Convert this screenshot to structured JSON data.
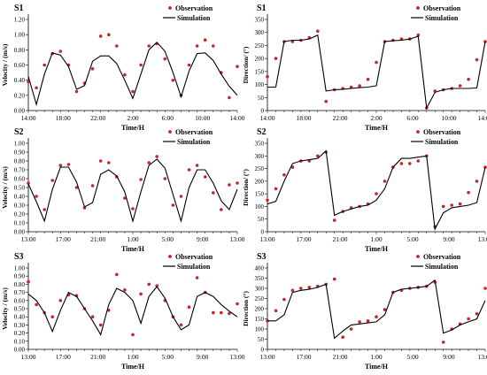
{
  "chart_data": [
    {
      "type": "line",
      "panel": "S1",
      "xlabel": "Time/H",
      "ylabel": "Velocity / (m/s)",
      "x_ticks": [
        "14:00",
        "18:00",
        "22:00",
        "2:00",
        "6:00",
        "10:00",
        "14:00"
      ],
      "ylim": [
        0,
        1.2
      ],
      "y_ticks": [
        "0.00",
        "0.20",
        "0.40",
        "0.60",
        "0.80",
        "1.00",
        "1.20"
      ],
      "legend": [
        "Observation",
        "Simulation"
      ],
      "legend_position": "top-right",
      "series": [
        {
          "name": "Observation",
          "style": "points",
          "x": [
            0,
            1,
            2,
            3,
            4,
            5,
            6,
            7,
            8,
            9,
            10,
            11,
            12,
            13,
            14,
            15,
            16,
            17,
            18,
            19,
            20,
            21,
            22,
            23,
            24,
            25,
            26
          ],
          "values": [
            0.38,
            0.3,
            0.6,
            0.75,
            0.78,
            0.6,
            0.25,
            0.36,
            0.55,
            0.98,
            1.0,
            0.85,
            0.47,
            0.25,
            0.6,
            0.85,
            0.88,
            0.68,
            0.4,
            0.2,
            0.6,
            0.85,
            0.93,
            0.85,
            0.5,
            0.17,
            0.58
          ]
        },
        {
          "name": "Simulation",
          "style": "line",
          "x": [
            0,
            1,
            2,
            3,
            4,
            5,
            6,
            7,
            8,
            9,
            10,
            11,
            12,
            13,
            14,
            15,
            16,
            17,
            18,
            19,
            20,
            21,
            22,
            23,
            24,
            25,
            26
          ],
          "values": [
            0.45,
            0.08,
            0.48,
            0.76,
            0.73,
            0.58,
            0.28,
            0.33,
            0.65,
            0.72,
            0.72,
            0.62,
            0.4,
            0.16,
            0.48,
            0.8,
            0.9,
            0.78,
            0.5,
            0.18,
            0.52,
            0.75,
            0.76,
            0.66,
            0.48,
            0.32,
            0.2
          ]
        }
      ]
    },
    {
      "type": "line",
      "panel": "S1",
      "xlabel": "Time/H",
      "ylabel": "Direction/ (°)",
      "x_ticks": [
        "14:00",
        "18:00",
        "22:00",
        "2:00",
        "6:00",
        "10:00",
        "14:00"
      ],
      "ylim": [
        0,
        350
      ],
      "y_ticks": [
        "0",
        "50",
        "100",
        "150",
        "200",
        "250",
        "300",
        "350"
      ],
      "legend": [
        "Observation",
        "Simulation"
      ],
      "legend_position": "top-right",
      "series": [
        {
          "name": "Observation",
          "style": "points",
          "x": [
            0,
            1,
            2,
            3,
            4,
            5,
            6,
            7,
            8,
            9,
            10,
            11,
            12,
            13,
            14,
            15,
            16,
            17,
            18,
            19,
            20,
            21,
            22,
            23,
            24,
            25,
            26
          ],
          "values": [
            130,
            200,
            265,
            265,
            270,
            280,
            305,
            35,
            80,
            85,
            90,
            95,
            120,
            185,
            265,
            270,
            275,
            275,
            290,
            10,
            75,
            80,
            85,
            95,
            120,
            195,
            265
          ]
        },
        {
          "name": "Simulation",
          "style": "line",
          "x": [
            0,
            1,
            2,
            3,
            4,
            5,
            6,
            7,
            8,
            9,
            10,
            11,
            12,
            13,
            14,
            15,
            16,
            17,
            18,
            19,
            20,
            21,
            22,
            23,
            24,
            25,
            26
          ],
          "values": [
            90,
            90,
            265,
            270,
            270,
            275,
            290,
            75,
            80,
            82,
            85,
            88,
            90,
            95,
            265,
            268,
            270,
            275,
            285,
            10,
            70,
            80,
            85,
            85,
            85,
            87,
            265
          ]
        }
      ]
    },
    {
      "type": "line",
      "panel": "S2",
      "xlabel": "Time/H",
      "ylabel": "Velocity / (m/s)",
      "x_ticks": [
        "13:00",
        "17:00",
        "21:00",
        "1:00",
        "5:00",
        "9:00",
        "13:00"
      ],
      "ylim": [
        0,
        1.0
      ],
      "y_ticks": [
        "0.00",
        "0.10",
        "0.20",
        "0.30",
        "0.40",
        "0.50",
        "0.60",
        "0.70",
        "0.80",
        "0.90",
        "1.00"
      ],
      "legend": [
        "Observation",
        "Simulation"
      ],
      "legend_position": "top-right",
      "series": [
        {
          "name": "Observation",
          "style": "points",
          "x": [
            0,
            1,
            2,
            3,
            4,
            5,
            6,
            7,
            8,
            9,
            10,
            11,
            12,
            13,
            14,
            15,
            16,
            17,
            18,
            19,
            20,
            21,
            22,
            23,
            24,
            25,
            26
          ],
          "values": [
            0.55,
            0.4,
            0.25,
            0.58,
            0.75,
            0.76,
            0.5,
            0.27,
            0.52,
            0.8,
            0.78,
            0.62,
            0.38,
            0.26,
            0.59,
            0.78,
            0.85,
            0.6,
            0.3,
            0.4,
            0.7,
            0.75,
            0.62,
            0.44,
            0.25,
            0.53,
            0.55
          ]
        },
        {
          "name": "Simulation",
          "style": "line",
          "x": [
            0,
            1,
            2,
            3,
            4,
            5,
            6,
            7,
            8,
            9,
            10,
            11,
            12,
            13,
            14,
            15,
            16,
            17,
            18,
            19,
            20,
            21,
            22,
            23,
            24,
            25,
            26
          ],
          "values": [
            0.54,
            0.34,
            0.12,
            0.48,
            0.73,
            0.73,
            0.56,
            0.28,
            0.33,
            0.65,
            0.7,
            0.63,
            0.45,
            0.12,
            0.45,
            0.75,
            0.82,
            0.72,
            0.42,
            0.12,
            0.5,
            0.7,
            0.7,
            0.55,
            0.35,
            0.25,
            0.48
          ]
        }
      ]
    },
    {
      "type": "line",
      "panel": "S2",
      "xlabel": "Time/H",
      "ylabel": "Direction/ (°)",
      "x_ticks": [
        "13:00",
        "17:00",
        "21:00",
        "1:00",
        "5:00",
        "9:00",
        "13:00"
      ],
      "ylim": [
        0,
        350
      ],
      "y_ticks": [
        "0",
        "50",
        "100",
        "150",
        "200",
        "250",
        "300",
        "350"
      ],
      "legend": [
        "Observation",
        "Simulation"
      ],
      "legend_position": "top-right",
      "series": [
        {
          "name": "Observation",
          "style": "points",
          "x": [
            0,
            1,
            2,
            3,
            4,
            5,
            6,
            7,
            8,
            9,
            10,
            11,
            12,
            13,
            14,
            15,
            16,
            17,
            18,
            19,
            20,
            21,
            22,
            23,
            24,
            25,
            26
          ],
          "values": [
            125,
            170,
            225,
            255,
            280,
            280,
            300,
            315,
            45,
            80,
            95,
            100,
            110,
            150,
            200,
            255,
            270,
            270,
            280,
            300,
            20,
            100,
            105,
            110,
            155,
            200,
            255
          ]
        },
        {
          "name": "Simulation",
          "style": "line",
          "x": [
            0,
            1,
            2,
            3,
            4,
            5,
            6,
            7,
            8,
            9,
            10,
            11,
            12,
            13,
            14,
            15,
            16,
            17,
            18,
            19,
            20,
            21,
            22,
            23,
            24,
            25,
            26
          ],
          "values": [
            110,
            120,
            200,
            270,
            280,
            285,
            290,
            320,
            65,
            80,
            90,
            100,
            105,
            125,
            170,
            255,
            290,
            290,
            295,
            300,
            10,
            75,
            95,
            100,
            105,
            115,
            255
          ]
        }
      ]
    },
    {
      "type": "line",
      "panel": "S3",
      "xlabel": "Time/H",
      "ylabel": "Velocity / (m/s)",
      "x_ticks": [
        "13:00",
        "17:00",
        "21:00",
        "1:00",
        "5:00",
        "9:00",
        "13:00"
      ],
      "ylim": [
        0,
        1.0
      ],
      "y_ticks": [
        "0.00",
        "0.10",
        "0.20",
        "0.30",
        "0.40",
        "0.50",
        "0.60",
        "0.70",
        "0.80",
        "0.90",
        "1.00"
      ],
      "legend": [
        "Observation",
        "Simulation"
      ],
      "legend_position": "top-right",
      "series": [
        {
          "name": "Observation",
          "style": "points",
          "x": [
            0,
            1,
            2,
            3,
            4,
            5,
            6,
            7,
            8,
            9,
            10,
            11,
            12,
            13,
            14,
            15,
            16,
            17,
            18,
            19,
            20,
            21,
            22,
            23,
            24,
            25,
            26
          ],
          "values": [
            0.83,
            0.55,
            0.45,
            0.4,
            0.6,
            0.67,
            0.66,
            0.5,
            0.4,
            0.3,
            0.48,
            0.92,
            0.73,
            0.18,
            0.68,
            0.8,
            0.78,
            0.6,
            0.4,
            0.3,
            0.52,
            0.88,
            0.7,
            0.45,
            0.45,
            0.44,
            0.56
          ]
        },
        {
          "name": "Simulation",
          "style": "line",
          "x": [
            0,
            1,
            2,
            3,
            4,
            5,
            6,
            7,
            8,
            9,
            10,
            11,
            12,
            13,
            14,
            15,
            16,
            17,
            18,
            19,
            20,
            21,
            22,
            23,
            24,
            25,
            26
          ],
          "values": [
            0.68,
            0.6,
            0.45,
            0.22,
            0.48,
            0.7,
            0.65,
            0.5,
            0.35,
            0.18,
            0.55,
            0.75,
            0.7,
            0.6,
            0.32,
            0.65,
            0.77,
            0.63,
            0.4,
            0.24,
            0.3,
            0.65,
            0.7,
            0.65,
            0.55,
            0.47,
            0.4
          ]
        }
      ]
    },
    {
      "type": "line",
      "panel": "S3",
      "xlabel": "Time/H",
      "ylabel": "Direction (°)",
      "x_ticks": [
        "13:00",
        "17:00",
        "21:00",
        "1:00",
        "5:00",
        "9:00",
        "13:00"
      ],
      "ylim": [
        0,
        400
      ],
      "y_ticks": [
        "0",
        "50",
        "100",
        "150",
        "200",
        "250",
        "300",
        "350",
        "400"
      ],
      "legend": [
        "Observation",
        "Simulation"
      ],
      "legend_position": "top-right",
      "series": [
        {
          "name": "Observation",
          "style": "points",
          "x": [
            0,
            1,
            2,
            3,
            4,
            5,
            6,
            7,
            8,
            9,
            10,
            11,
            12,
            13,
            14,
            15,
            16,
            17,
            18,
            19,
            20,
            21,
            22,
            23,
            24,
            25,
            26
          ],
          "values": [
            140,
            190,
            245,
            290,
            300,
            305,
            310,
            320,
            345,
            60,
            100,
            135,
            140,
            160,
            195,
            280,
            290,
            300,
            305,
            310,
            330,
            35,
            100,
            125,
            150,
            175,
            300
          ]
        },
        {
          "name": "Simulation",
          "style": "line",
          "x": [
            0,
            1,
            2,
            3,
            4,
            5,
            6,
            7,
            8,
            9,
            10,
            11,
            12,
            13,
            14,
            15,
            16,
            17,
            18,
            19,
            20,
            21,
            22,
            23,
            24,
            25,
            26
          ],
          "values": [
            140,
            140,
            170,
            280,
            290,
            295,
            305,
            320,
            55,
            90,
            120,
            125,
            130,
            135,
            170,
            280,
            295,
            300,
            305,
            310,
            340,
            80,
            95,
            120,
            135,
            150,
            240
          ]
        }
      ]
    }
  ]
}
